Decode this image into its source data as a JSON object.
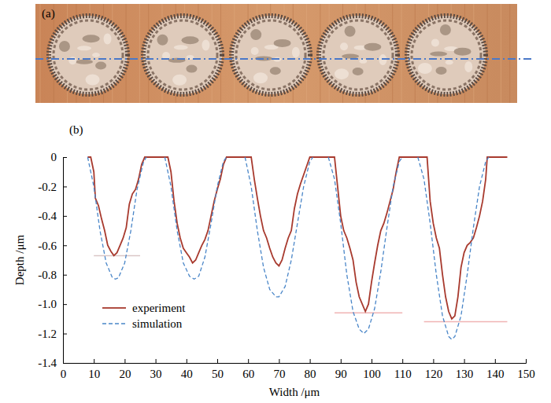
{
  "panel_labels": [
    "(a)",
    "(b)"
  ],
  "chart_data": {
    "type": "line",
    "x_label": "Width /μm",
    "y_label": "Depth /μm",
    "xlim": [
      0,
      150
    ],
    "xticks": [
      0,
      10,
      20,
      30,
      40,
      50,
      60,
      70,
      80,
      90,
      100,
      110,
      120,
      130,
      140,
      150
    ],
    "ylim": [
      -1.4,
      0
    ],
    "yticks": [
      0,
      -0.2,
      -0.4,
      -0.6,
      -0.8,
      {
        "value": -1,
        "label": "-1.0"
      },
      -1.2,
      -1.4
    ],
    "legend": "lower left",
    "series": [
      {
        "name": "experiment",
        "color": "#a83a2e",
        "line_style": "solid",
        "x": [
          8,
          9,
          10,
          10.5,
          11.5,
          12.5,
          13.5,
          14.5,
          15.5,
          16.5,
          17.5,
          18.5,
          19.5,
          20.5,
          21.5,
          22.5,
          23.5,
          24.5,
          25.5,
          26.5,
          34,
          35,
          36,
          37,
          38,
          39,
          40,
          41,
          42,
          43,
          44,
          45,
          46,
          47,
          48,
          49,
          50,
          51,
          52,
          53,
          61,
          62,
          63,
          64,
          65,
          66,
          67,
          68,
          69,
          70,
          71,
          72,
          73,
          74,
          75,
          76,
          77,
          78,
          79,
          80,
          88,
          88.5,
          89,
          90,
          91,
          92,
          93,
          94,
          95,
          96,
          97,
          98,
          99,
          100,
          101,
          102,
          103,
          104,
          105,
          106,
          107,
          108,
          109,
          118,
          118.5,
          119,
          120,
          121,
          122,
          123,
          124,
          125,
          126,
          127,
          128,
          129,
          130,
          131,
          132,
          133,
          134,
          135,
          136,
          137,
          137.5,
          144
        ],
        "values": [
          0,
          0,
          -0.1,
          -0.28,
          -0.33,
          -0.42,
          -0.5,
          -0.6,
          -0.64,
          -0.67,
          -0.65,
          -0.6,
          -0.55,
          -0.48,
          -0.32,
          -0.25,
          -0.22,
          -0.15,
          -0.05,
          0,
          0,
          -0.1,
          -0.3,
          -0.45,
          -0.55,
          -0.62,
          -0.65,
          -0.68,
          -0.72,
          -0.7,
          -0.65,
          -0.6,
          -0.56,
          -0.5,
          -0.4,
          -0.3,
          -0.22,
          -0.15,
          -0.05,
          0,
          0,
          -0.15,
          -0.28,
          -0.4,
          -0.5,
          -0.55,
          -0.62,
          -0.68,
          -0.72,
          -0.74,
          -0.7,
          -0.62,
          -0.55,
          -0.5,
          -0.35,
          -0.25,
          -0.18,
          -0.12,
          -0.06,
          0,
          0,
          -0.1,
          -0.2,
          -0.4,
          -0.5,
          -0.55,
          -0.62,
          -0.7,
          -0.85,
          -0.95,
          -1.0,
          -1.05,
          -1.0,
          -0.85,
          -0.72,
          -0.6,
          -0.5,
          -0.45,
          -0.38,
          -0.3,
          -0.22,
          -0.1,
          0,
          0,
          -0.15,
          -0.3,
          -0.45,
          -0.55,
          -0.62,
          -0.8,
          -0.95,
          -1.05,
          -1.1,
          -1.08,
          -0.95,
          -0.75,
          -0.65,
          -0.6,
          -0.58,
          -0.55,
          -0.48,
          -0.4,
          -0.3,
          -0.15,
          0,
          0
        ]
      },
      {
        "name": "simulation",
        "color": "#4a86c8",
        "line_style": "dashed",
        "x": [
          8,
          10,
          12,
          14,
          16,
          17,
          18,
          20,
          22,
          24,
          26,
          27,
          30,
          33,
          35,
          37,
          39,
          41,
          42.5,
          44,
          46,
          48,
          50,
          52,
          53,
          56,
          59,
          61,
          63,
          65,
          67,
          69,
          70,
          72,
          74,
          76,
          78,
          80,
          81,
          83.5,
          86,
          88,
          90,
          92,
          94,
          96,
          97.5,
          99,
          101,
          103,
          105,
          107,
          109,
          110,
          112.5,
          115,
          117,
          119,
          121,
          123,
          125,
          126,
          127,
          129,
          131,
          133,
          135,
          137,
          138
        ],
        "values": [
          0,
          -0.2,
          -0.5,
          -0.72,
          -0.82,
          -0.83,
          -0.82,
          -0.72,
          -0.5,
          -0.22,
          -0.04,
          0,
          null,
          0,
          -0.2,
          -0.5,
          -0.72,
          -0.81,
          -0.83,
          -0.81,
          -0.68,
          -0.45,
          -0.2,
          -0.03,
          0,
          null,
          0,
          -0.2,
          -0.5,
          -0.75,
          -0.9,
          -0.95,
          -0.95,
          -0.88,
          -0.7,
          -0.45,
          -0.2,
          -0.03,
          0,
          null,
          0,
          -0.15,
          -0.45,
          -0.8,
          -1.05,
          -1.17,
          -1.2,
          -1.17,
          -1.03,
          -0.78,
          -0.48,
          -0.2,
          -0.03,
          0,
          null,
          0,
          -0.15,
          -0.45,
          -0.8,
          -1.08,
          -1.22,
          -1.24,
          -1.22,
          -1.08,
          -0.8,
          -0.48,
          -0.2,
          -0.03,
          0
        ]
      }
    ],
    "reference_lines": [
      {
        "y": -0.67,
        "x": [
          10,
          25
        ],
        "color": "#d9c6c6"
      },
      {
        "y": -1.06,
        "x": [
          88,
          110
        ],
        "color": "#f0b4b4"
      },
      {
        "y": -1.12,
        "x": [
          117,
          144
        ],
        "color": "#f0b4b4"
      }
    ]
  }
}
